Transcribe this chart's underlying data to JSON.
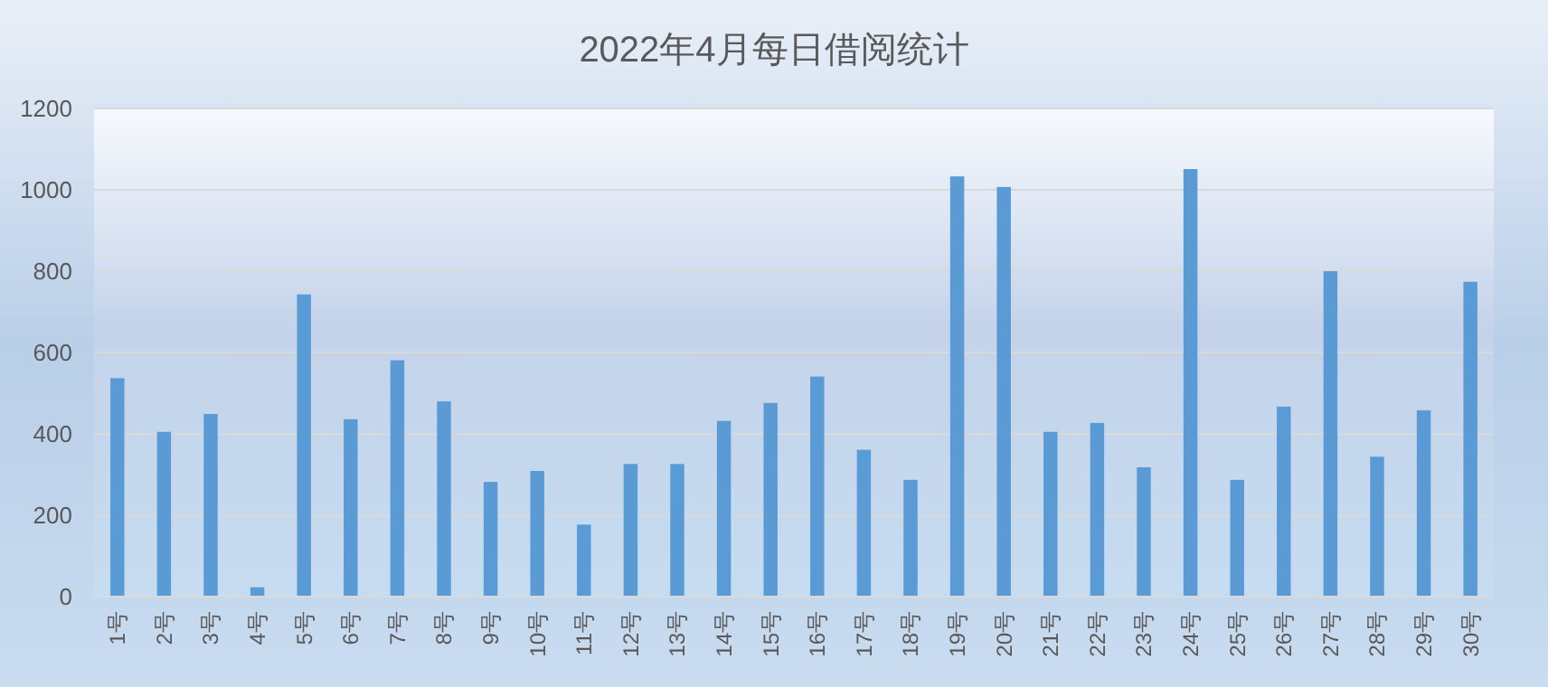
{
  "chart_data": {
    "type": "bar",
    "title": "2022年4月每日借阅统计",
    "categories": [
      "1号",
      "2号",
      "3号",
      "4号",
      "5号",
      "6号",
      "7号",
      "8号",
      "9号",
      "10号",
      "11号",
      "12号",
      "13号",
      "14号",
      "15号",
      "16号",
      "17号",
      "18号",
      "19号",
      "20号",
      "21号",
      "22号",
      "23号",
      "24号",
      "25号",
      "26号",
      "27号",
      "28号",
      "29号",
      "30号"
    ],
    "values": [
      537,
      405,
      449,
      23,
      743,
      436,
      581,
      480,
      282,
      309,
      177,
      326,
      326,
      432,
      476,
      541,
      361,
      287,
      1033,
      1007,
      405,
      427,
      318,
      1051,
      287,
      467,
      800,
      344,
      458,
      774
    ],
    "color": "#5b9bd5",
    "ylim": [
      0,
      1200
    ],
    "yticks": [
      0,
      200,
      400,
      600,
      800,
      1000,
      1200
    ],
    "grid": "y"
  }
}
